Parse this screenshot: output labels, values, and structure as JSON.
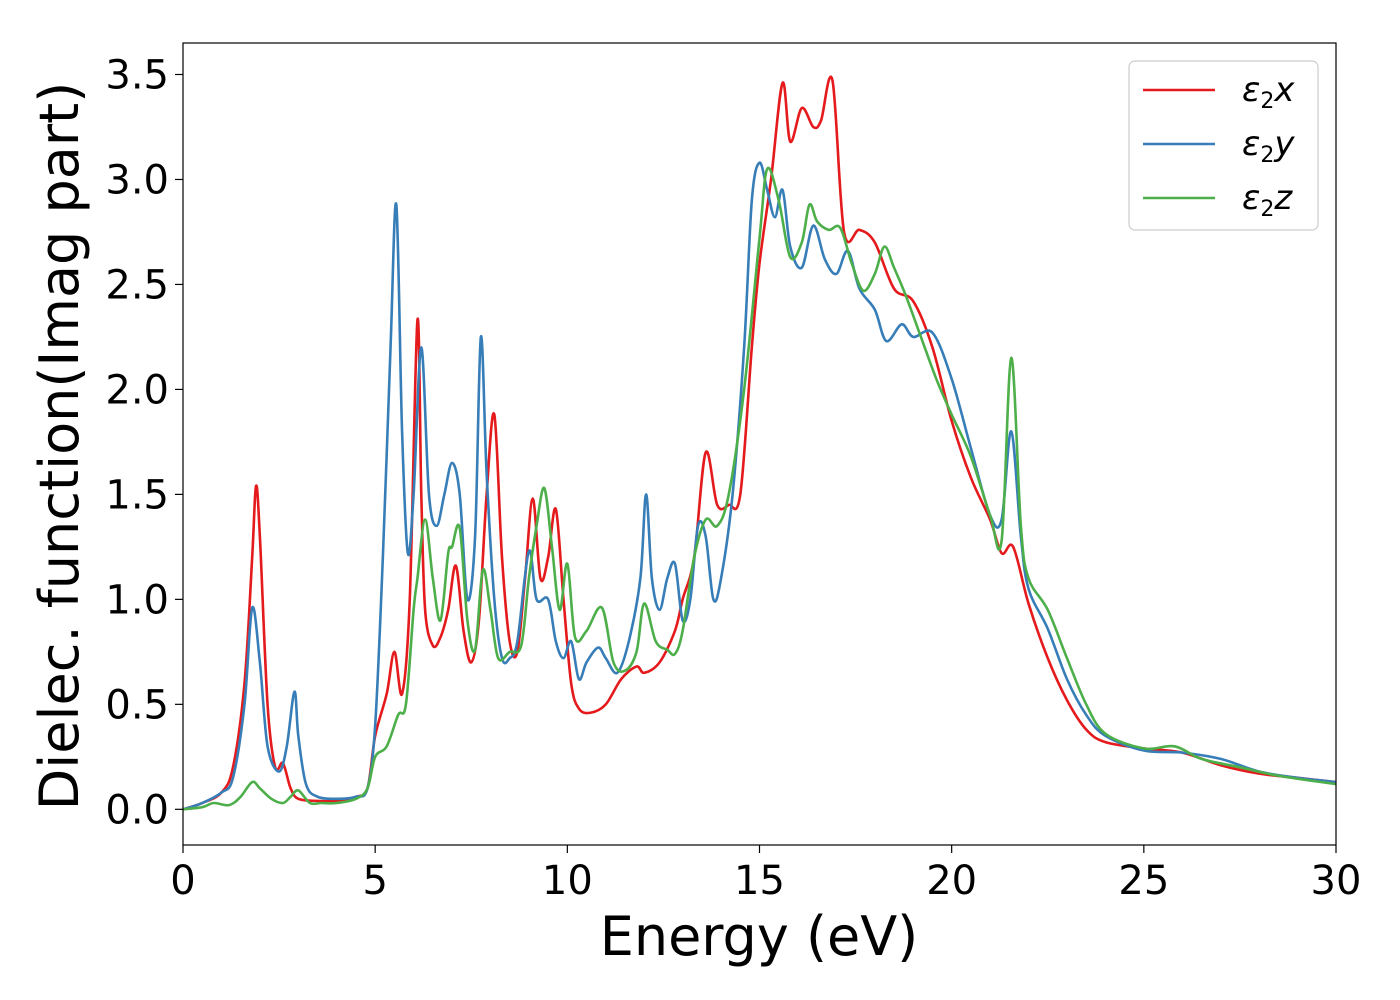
{
  "chart_data": {
    "type": "line",
    "title": "",
    "xlabel": "Energy (eV)",
    "ylabel": "Dielec. function(Imag part)",
    "xlim": [
      0,
      30
    ],
    "ylim": [
      -0.17,
      3.65
    ],
    "xticks": [
      0,
      5,
      10,
      15,
      20,
      25,
      30
    ],
    "xtick_labels": [
      "0",
      "5",
      "10",
      "15",
      "20",
      "25",
      "30"
    ],
    "yticks": [
      0.0,
      0.5,
      1.0,
      1.5,
      2.0,
      2.5,
      3.0,
      3.5
    ],
    "ytick_labels": [
      "0.0",
      "0.5",
      "1.0",
      "1.5",
      "2.0",
      "2.5",
      "3.0",
      "3.5"
    ],
    "grid": false,
    "legend_position": "top-right",
    "series": [
      {
        "name": "ε₂x",
        "legend_base": "ε",
        "legend_sub": "2",
        "legend_suffix": "x",
        "color": "#e41a1c",
        "x": [
          0,
          0.5,
          1.0,
          1.3,
          1.6,
          1.8,
          1.9,
          2.0,
          2.2,
          2.4,
          2.6,
          2.8,
          3.0,
          3.5,
          4.0,
          4.5,
          4.8,
          5.0,
          5.3,
          5.5,
          5.7,
          5.9,
          6.1,
          6.2,
          6.3,
          6.5,
          6.7,
          6.9,
          7.1,
          7.3,
          7.5,
          7.7,
          7.9,
          8.1,
          8.3,
          8.5,
          8.7,
          8.9,
          9.1,
          9.3,
          9.5,
          9.7,
          9.9,
          10.1,
          10.3,
          10.6,
          11.0,
          11.4,
          11.8,
          12.0,
          12.4,
          12.8,
          13.0,
          13.3,
          13.6,
          13.9,
          14.2,
          14.5,
          14.8,
          15.0,
          15.3,
          15.6,
          15.8,
          16.1,
          16.4,
          16.6,
          16.9,
          17.2,
          17.6,
          18.0,
          18.5,
          19.0,
          19.5,
          20.0,
          20.5,
          21.0,
          21.3,
          21.6,
          22.0,
          22.5,
          23.0,
          23.5,
          24.0,
          25.0,
          26.0,
          27.0,
          28.0,
          29.0,
          30.0
        ],
        "y": [
          0.0,
          0.03,
          0.08,
          0.2,
          0.6,
          1.2,
          1.54,
          1.3,
          0.5,
          0.2,
          0.22,
          0.1,
          0.05,
          0.04,
          0.04,
          0.06,
          0.1,
          0.35,
          0.55,
          0.75,
          0.55,
          1.0,
          2.33,
          1.5,
          0.95,
          0.78,
          0.82,
          0.95,
          1.16,
          0.85,
          0.7,
          0.9,
          1.5,
          1.88,
          1.2,
          0.8,
          0.75,
          1.1,
          1.48,
          1.1,
          1.2,
          1.43,
          1.0,
          0.6,
          0.48,
          0.46,
          0.5,
          0.62,
          0.68,
          0.65,
          0.7,
          0.85,
          1.0,
          1.2,
          1.7,
          1.45,
          1.45,
          1.5,
          2.2,
          2.6,
          3.0,
          3.46,
          3.18,
          3.34,
          3.25,
          3.28,
          3.47,
          2.75,
          2.76,
          2.7,
          2.48,
          2.42,
          2.2,
          1.85,
          1.58,
          1.38,
          1.22,
          1.25,
          0.98,
          0.72,
          0.52,
          0.38,
          0.32,
          0.29,
          0.27,
          0.21,
          0.17,
          0.15,
          0.13
        ]
      },
      {
        "name": "ε₂y",
        "legend_base": "ε",
        "legend_sub": "2",
        "legend_suffix": "y",
        "color": "#377eb8",
        "x": [
          0,
          0.5,
          1.0,
          1.3,
          1.6,
          1.8,
          2.0,
          2.2,
          2.5,
          2.7,
          2.9,
          3.0,
          3.2,
          3.5,
          4.0,
          4.5,
          4.8,
          5.0,
          5.2,
          5.4,
          5.55,
          5.7,
          5.85,
          6.0,
          6.2,
          6.4,
          6.6,
          6.8,
          7.0,
          7.2,
          7.4,
          7.6,
          7.75,
          7.9,
          8.1,
          8.3,
          8.5,
          8.7,
          9.0,
          9.2,
          9.5,
          9.7,
          9.9,
          10.1,
          10.3,
          10.5,
          10.8,
          11.0,
          11.3,
          11.6,
          11.9,
          12.05,
          12.2,
          12.4,
          12.6,
          12.8,
          13.0,
          13.2,
          13.4,
          13.6,
          13.8,
          14.0,
          14.3,
          14.6,
          14.8,
          15.0,
          15.2,
          15.4,
          15.6,
          15.8,
          16.1,
          16.4,
          16.7,
          17.0,
          17.3,
          17.6,
          18.0,
          18.3,
          18.7,
          19.0,
          19.5,
          20.0,
          20.5,
          21.0,
          21.3,
          21.55,
          21.8,
          22.0,
          22.5,
          23.0,
          23.5,
          24.0,
          25.0,
          26.0,
          27.0,
          28.0,
          29.0,
          30.0
        ],
        "y": [
          0.0,
          0.03,
          0.08,
          0.15,
          0.5,
          0.96,
          0.7,
          0.3,
          0.18,
          0.3,
          0.56,
          0.35,
          0.12,
          0.06,
          0.05,
          0.06,
          0.1,
          0.4,
          1.2,
          2.2,
          2.88,
          1.8,
          1.22,
          1.5,
          2.2,
          1.5,
          1.35,
          1.5,
          1.65,
          1.5,
          1.0,
          1.3,
          2.25,
          1.6,
          1.0,
          0.72,
          0.72,
          0.8,
          1.23,
          1.0,
          1.0,
          0.8,
          0.72,
          0.8,
          0.62,
          0.7,
          0.77,
          0.72,
          0.65,
          0.8,
          1.1,
          1.5,
          1.1,
          0.95,
          1.1,
          1.17,
          0.9,
          1.0,
          1.35,
          1.3,
          1.0,
          1.1,
          1.5,
          2.2,
          2.9,
          3.08,
          2.95,
          2.82,
          2.95,
          2.68,
          2.58,
          2.78,
          2.62,
          2.55,
          2.66,
          2.48,
          2.38,
          2.23,
          2.31,
          2.25,
          2.27,
          2.05,
          1.72,
          1.4,
          1.38,
          1.8,
          1.3,
          1.05,
          0.86,
          0.62,
          0.45,
          0.35,
          0.28,
          0.27,
          0.24,
          0.18,
          0.15,
          0.13
        ]
      },
      {
        "name": "ε₂z",
        "legend_base": "ε",
        "legend_sub": "2",
        "legend_suffix": "z",
        "color": "#4daf4a",
        "x": [
          0,
          0.5,
          0.8,
          1.2,
          1.5,
          1.8,
          2.0,
          2.3,
          2.6,
          2.8,
          3.0,
          3.3,
          3.6,
          4.0,
          4.5,
          4.8,
          5.0,
          5.3,
          5.6,
          5.8,
          6.0,
          6.1,
          6.3,
          6.5,
          6.7,
          6.9,
          7.0,
          7.2,
          7.4,
          7.6,
          7.8,
          8.0,
          8.2,
          8.5,
          8.8,
          9.0,
          9.2,
          9.4,
          9.6,
          9.8,
          10.0,
          10.2,
          10.5,
          10.9,
          11.2,
          11.5,
          11.8,
          12.0,
          12.3,
          12.6,
          12.8,
          13.0,
          13.3,
          13.6,
          13.9,
          14.2,
          14.6,
          15.0,
          15.2,
          15.5,
          15.8,
          16.1,
          16.3,
          16.5,
          16.8,
          17.1,
          17.4,
          17.7,
          18.0,
          18.25,
          18.5,
          18.8,
          19.2,
          19.6,
          20.0,
          20.5,
          21.0,
          21.3,
          21.55,
          21.8,
          22.0,
          22.5,
          23.0,
          23.5,
          24.0,
          25.0,
          25.8,
          26.5,
          27.5,
          28.5,
          30.0
        ],
        "y": [
          0.0,
          0.01,
          0.03,
          0.02,
          0.06,
          0.13,
          0.1,
          0.05,
          0.03,
          0.06,
          0.09,
          0.03,
          0.03,
          0.03,
          0.05,
          0.1,
          0.25,
          0.3,
          0.45,
          0.5,
          0.95,
          1.1,
          1.38,
          1.1,
          0.9,
          1.22,
          1.25,
          1.34,
          0.9,
          0.76,
          1.14,
          0.95,
          0.72,
          0.75,
          0.78,
          1.1,
          1.35,
          1.53,
          1.25,
          0.95,
          1.17,
          0.82,
          0.85,
          0.96,
          0.7,
          0.66,
          0.75,
          0.98,
          0.8,
          0.76,
          0.74,
          0.85,
          1.2,
          1.38,
          1.35,
          1.5,
          2.0,
          2.72,
          3.05,
          2.9,
          2.63,
          2.7,
          2.88,
          2.8,
          2.76,
          2.77,
          2.6,
          2.47,
          2.55,
          2.68,
          2.58,
          2.45,
          2.25,
          2.05,
          1.88,
          1.68,
          1.4,
          1.28,
          2.15,
          1.35,
          1.1,
          0.95,
          0.72,
          0.5,
          0.36,
          0.29,
          0.3,
          0.24,
          0.2,
          0.16,
          0.12
        ]
      }
    ]
  }
}
